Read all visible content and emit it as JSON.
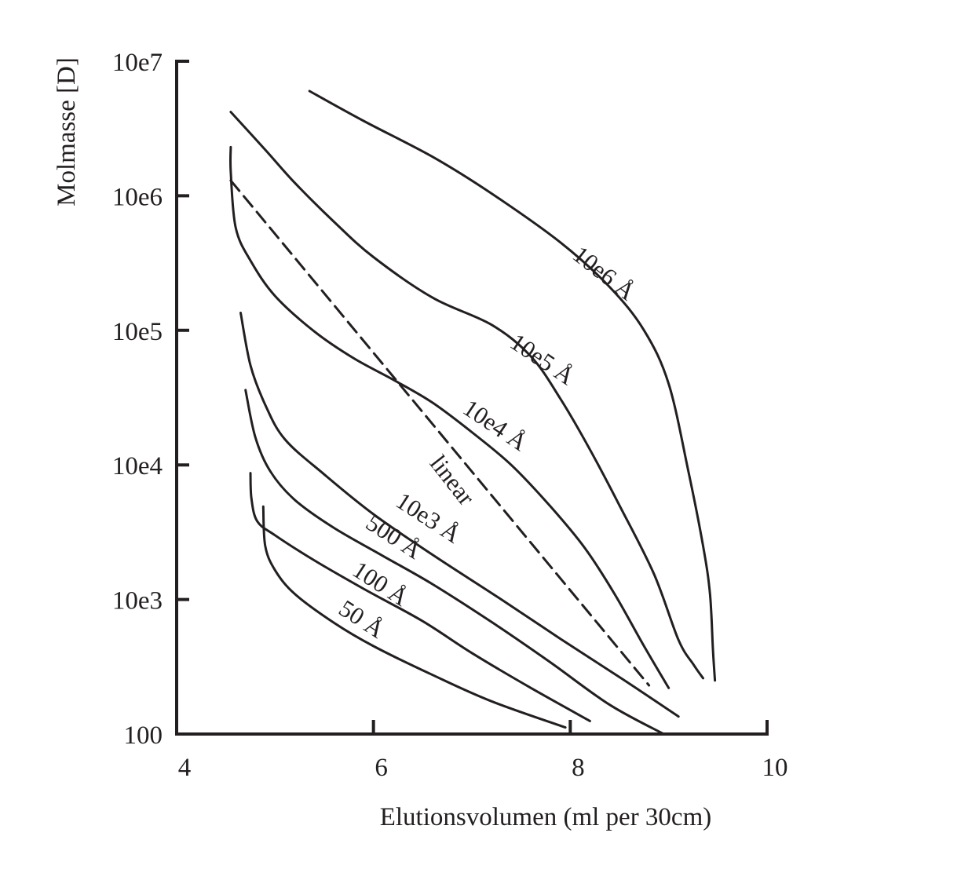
{
  "chart_data": {
    "type": "line",
    "title": "",
    "xlabel": "Elutionsvolumen (ml per 30cm)",
    "ylabel": "Molmasse [D]",
    "xlim": [
      4,
      10
    ],
    "ylim": [
      100,
      10000000
    ],
    "yscale": "log",
    "grid": false,
    "legend": "none (inline curve labels)",
    "x_ticks": [
      {
        "value": 4,
        "label": "4"
      },
      {
        "value": 6,
        "label": "6"
      },
      {
        "value": 8,
        "label": "8"
      },
      {
        "value": 10,
        "label": "10"
      }
    ],
    "y_ticks": [
      {
        "value": 100,
        "label": "100"
      },
      {
        "value": 1000,
        "label": "10e3"
      },
      {
        "value": 10000,
        "label": "10e4"
      },
      {
        "value": 100000,
        "label": "10e5"
      },
      {
        "value": 1000000,
        "label": "10e6"
      },
      {
        "value": 10000000,
        "label": "10e7"
      }
    ],
    "series": [
      {
        "name": "10e6 Å",
        "style": "solid",
        "points": [
          [
            5.35,
            6000000
          ],
          [
            5.9,
            3600000
          ],
          [
            6.6,
            1950000
          ],
          [
            7.2,
            1040000
          ],
          [
            7.9,
            450000
          ],
          [
            8.4,
            210000
          ],
          [
            8.75,
            100000
          ],
          [
            9.0,
            40000
          ],
          [
            9.2,
            9000
          ],
          [
            9.35,
            2500
          ],
          [
            9.42,
            1100
          ],
          [
            9.45,
            420
          ],
          [
            9.47,
            250
          ]
        ]
      },
      {
        "name": "10e5 Å",
        "style": "solid",
        "points": [
          [
            4.55,
            4200000
          ],
          [
            4.9,
            2200000
          ],
          [
            5.2,
            1250000
          ],
          [
            5.6,
            640000
          ],
          [
            6.0,
            350000
          ],
          [
            6.6,
            175000
          ],
          [
            7.2,
            110000
          ],
          [
            7.6,
            64000
          ],
          [
            7.9,
            31000
          ],
          [
            8.2,
            13000
          ],
          [
            8.5,
            5000
          ],
          [
            8.85,
            1550
          ],
          [
            9.1,
            500
          ],
          [
            9.25,
            330
          ],
          [
            9.35,
            260
          ]
        ]
      },
      {
        "name": "10e4 Å",
        "style": "solid",
        "points": [
          [
            4.55,
            2300000
          ],
          [
            4.55,
            1500000
          ],
          [
            4.6,
            580000
          ],
          [
            4.75,
            330000
          ],
          [
            5.0,
            180000
          ],
          [
            5.4,
            98000
          ],
          [
            5.8,
            62000
          ],
          [
            6.2,
            43000
          ],
          [
            6.6,
            29000
          ],
          [
            7.0,
            17500
          ],
          [
            7.4,
            10000
          ],
          [
            7.8,
            4900
          ],
          [
            8.15,
            2400
          ],
          [
            8.45,
            1100
          ],
          [
            8.75,
            450
          ],
          [
            9.0,
            220
          ]
        ]
      },
      {
        "name": "10e3 Å",
        "style": "solid",
        "points": [
          [
            4.65,
            135000
          ],
          [
            4.75,
            55000
          ],
          [
            4.9,
            28000
          ],
          [
            5.1,
            15500
          ],
          [
            5.5,
            8500
          ],
          [
            6.0,
            4300
          ],
          [
            6.6,
            2150
          ],
          [
            7.3,
            1000
          ],
          [
            7.9,
            510
          ],
          [
            8.5,
            265
          ],
          [
            9.1,
            135
          ]
        ]
      },
      {
        "name": "500 Å",
        "style": "solid",
        "points": [
          [
            4.7,
            36000
          ],
          [
            4.8,
            16000
          ],
          [
            4.95,
            9000
          ],
          [
            5.2,
            5500
          ],
          [
            5.6,
            3400
          ],
          [
            6.1,
            2100
          ],
          [
            6.6,
            1300
          ],
          [
            7.2,
            680
          ],
          [
            7.8,
            340
          ],
          [
            8.4,
            165
          ],
          [
            8.95,
            100
          ]
        ]
      },
      {
        "name": "100 Å",
        "style": "solid",
        "points": [
          [
            4.75,
            8700
          ],
          [
            4.76,
            5600
          ],
          [
            4.82,
            3800
          ],
          [
            5.0,
            3000
          ],
          [
            5.4,
            1950
          ],
          [
            5.9,
            1200
          ],
          [
            6.5,
            690
          ],
          [
            7.0,
            400
          ],
          [
            7.6,
            220
          ],
          [
            8.2,
            125
          ]
        ]
      },
      {
        "name": "50 Å",
        "style": "solid",
        "points": [
          [
            4.88,
            4900
          ],
          [
            4.9,
            2500
          ],
          [
            5.0,
            1650
          ],
          [
            5.2,
            1100
          ],
          [
            5.6,
            670
          ],
          [
            6.0,
            450
          ],
          [
            6.6,
            275
          ],
          [
            7.2,
            175
          ],
          [
            7.95,
            112
          ]
        ]
      },
      {
        "name": "linear",
        "style": "dashed",
        "points": [
          [
            4.55,
            1300000
          ],
          [
            8.8,
            230
          ]
        ]
      }
    ],
    "curve_labels": [
      {
        "series": "10e6 Å",
        "text": "10e6 Å"
      },
      {
        "series": "10e5 Å",
        "text": "10e5 Å"
      },
      {
        "series": "10e4 Å",
        "text": "10e4 Å"
      },
      {
        "series": "linear",
        "text": "linear"
      },
      {
        "series": "10e3 Å",
        "text": "10e3 Å"
      },
      {
        "series": "500 Å",
        "text": "500 Å"
      },
      {
        "series": "100 Å",
        "text": "100 Å"
      },
      {
        "series": "50 Å",
        "text": "50 Å"
      }
    ],
    "colors": {
      "ink": "#231f20",
      "background": "#ffffff"
    }
  }
}
